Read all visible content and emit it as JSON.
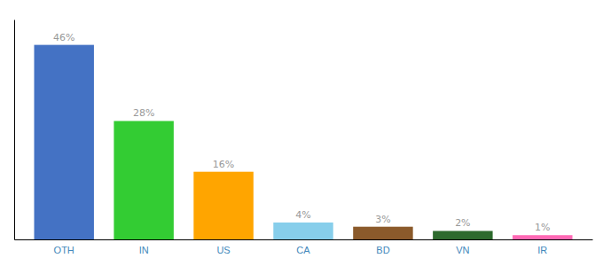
{
  "chart_data": {
    "type": "bar",
    "categories": [
      "OTH",
      "IN",
      "US",
      "CA",
      "BD",
      "VN",
      "IR"
    ],
    "values": [
      46,
      28,
      16,
      4,
      3,
      2,
      1
    ],
    "value_labels": [
      "46%",
      "28%",
      "16%",
      "4%",
      "3%",
      "2%",
      "1%"
    ],
    "colors": [
      "#4472C4",
      "#33CC33",
      "#FFA500",
      "#87CEEB",
      "#8B5A2B",
      "#2D6A2D",
      "#FF69B4"
    ],
    "ylim": [
      0,
      52
    ],
    "data_labels": true,
    "tick_labels": "x",
    "grid": false
  }
}
